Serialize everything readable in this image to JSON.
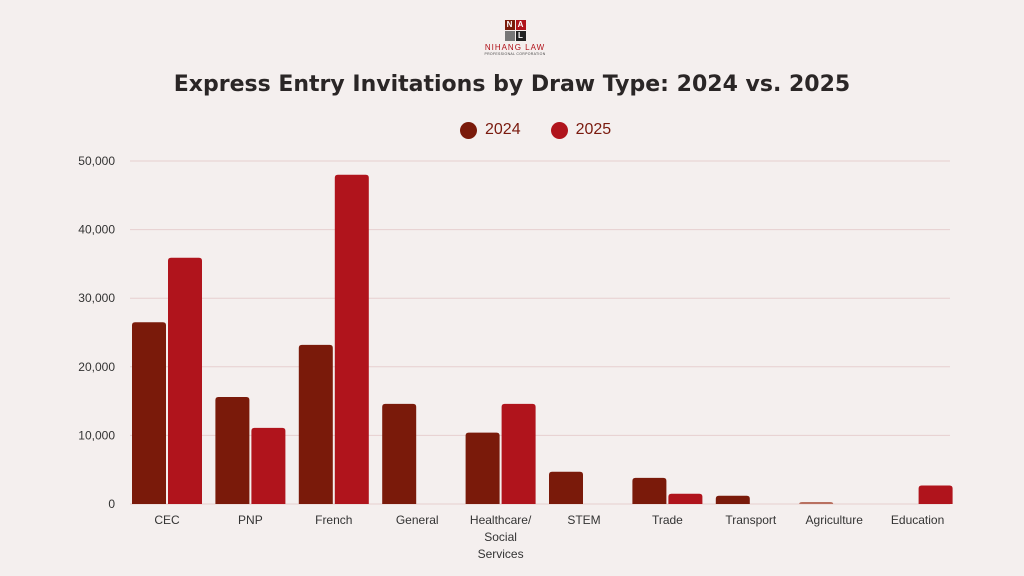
{
  "logo": {
    "text": "NIHANG LAW",
    "subtext": "PROFESSIONAL CORPORATION",
    "letters": [
      "N",
      "A",
      "",
      "L"
    ]
  },
  "chart_data": {
    "type": "bar",
    "title": "Express Entry Invitations by Draw Type: 2024 vs. 2025",
    "categories": [
      "CEC",
      "PNP",
      "French",
      "General",
      "Healthcare/ Social Services",
      "STEM",
      "Trade",
      "Transport",
      "Agriculture",
      "Education"
    ],
    "category_lines": [
      [
        "CEC"
      ],
      [
        "PNP"
      ],
      [
        "French"
      ],
      [
        "General"
      ],
      [
        "Healthcare/",
        "Social",
        "Services"
      ],
      [
        "STEM"
      ],
      [
        "Trade"
      ],
      [
        "Transport"
      ],
      [
        "Agriculture"
      ],
      [
        "Education"
      ]
    ],
    "series": [
      {
        "name": "2024",
        "color": "#7a1a0a",
        "values": [
          26500,
          15600,
          23200,
          14600,
          10400,
          4700,
          3800,
          1200,
          300,
          0
        ]
      },
      {
        "name": "2025",
        "color": "#b0141c",
        "values": [
          35900,
          11100,
          48000,
          0,
          14600,
          0,
          1500,
          0,
          0,
          2700
        ]
      }
    ],
    "ylim": [
      0,
      50000
    ],
    "yticks": [
      "0",
      "10,000",
      "20,000",
      "30,000",
      "40,000",
      "50,000"
    ],
    "grid": true,
    "legend": "top-center"
  }
}
